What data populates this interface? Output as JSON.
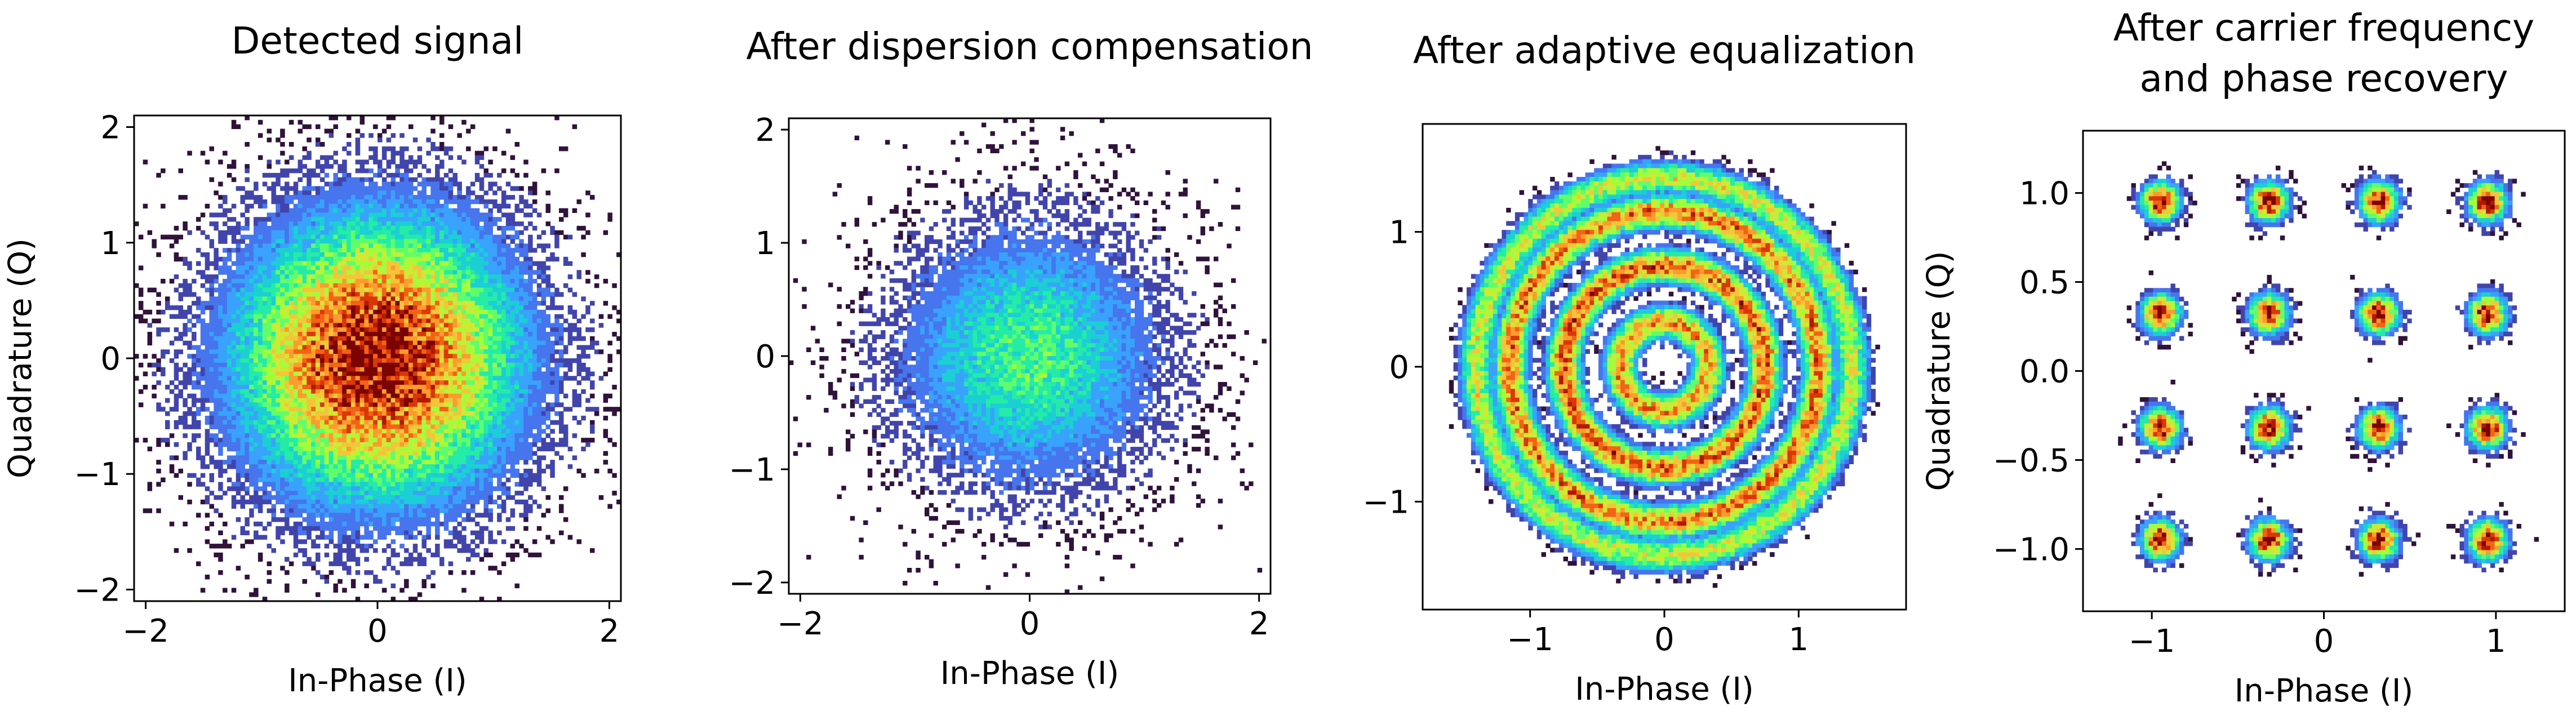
{
  "figure": {
    "background": "#ffffff",
    "colormap": [
      "#30123b",
      "#4145ab",
      "#4675ed",
      "#39a2fc",
      "#1bcfd4",
      "#24eca6",
      "#61fc6c",
      "#a4fc3b",
      "#d1e834",
      "#f3c63a",
      "#fe9b2d",
      "#f36315",
      "#d93806",
      "#b11901",
      "#7a0402"
    ]
  },
  "chart_data": [
    {
      "type": "heatmap",
      "title": "Detected signal",
      "xlabel": "In-Phase (I)",
      "ylabel": "Quadrature (Q)",
      "xlim": [
        -2.1,
        2.1
      ],
      "ylim": [
        -2.1,
        2.1
      ],
      "xticks": [
        -2,
        0,
        2
      ],
      "xtick_labels": [
        "−2",
        "0",
        "2"
      ],
      "yticks": [
        -2,
        -1,
        0,
        1,
        2
      ],
      "ytick_labels": [
        "−2",
        "−1",
        "0",
        "1",
        "2"
      ],
      "distribution": {
        "kind": "gaussian",
        "center": [
          0,
          0
        ],
        "sigma": 0.75,
        "peak_density": 1.0
      }
    },
    {
      "type": "heatmap",
      "title": "After dispersion compensation",
      "xlabel": "In-Phase (I)",
      "ylabel": "",
      "xlim": [
        -2.1,
        2.1
      ],
      "ylim": [
        -2.1,
        2.1
      ],
      "xticks": [
        -2,
        0,
        2
      ],
      "xtick_labels": [
        "−2",
        "0",
        "2"
      ],
      "yticks": [
        -2,
        -1,
        0,
        1,
        2
      ],
      "ytick_labels": [
        "−2",
        "−1",
        "0",
        "1",
        "2"
      ],
      "distribution": {
        "kind": "gaussian",
        "center": [
          0,
          0
        ],
        "sigma": 0.7,
        "peak_density": 0.4
      }
    },
    {
      "type": "heatmap",
      "title": "After adaptive equalization",
      "xlabel": "In-Phase (I)",
      "ylabel": "",
      "xlim": [
        -1.8,
        1.8
      ],
      "ylim": [
        -1.8,
        1.8
      ],
      "xticks": [
        -1,
        0,
        1
      ],
      "xtick_labels": [
        "−1",
        "0",
        "1"
      ],
      "yticks": [
        -1,
        0,
        1
      ],
      "ytick_labels": [
        "−1",
        "0",
        "1"
      ],
      "distribution": {
        "kind": "rings",
        "radii": [
          0.33,
          0.75,
          1.15,
          1.4
        ],
        "ring_width": 0.08,
        "peak_density": [
          0.7,
          0.8,
          0.75,
          0.55
        ]
      }
    },
    {
      "type": "heatmap",
      "title": "After carrier frequency and phase recovery",
      "xlabel": "In-Phase (I)",
      "ylabel": "Quadrature (Q)",
      "xlim": [
        -1.4,
        1.4
      ],
      "ylim": [
        -1.35,
        1.35
      ],
      "xticks": [
        -1,
        0,
        1
      ],
      "xtick_labels": [
        "−1",
        "0",
        "1"
      ],
      "yticks": [
        -1.0,
        -0.5,
        0.0,
        0.5,
        1.0
      ],
      "ytick_labels": [
        "−1.0",
        "−0.5",
        "0.0",
        "0.5",
        "1.0"
      ],
      "distribution": {
        "kind": "clusters",
        "centers_i": [
          -0.95,
          -0.32,
          0.32,
          0.95
        ],
        "centers_q": [
          -0.95,
          -0.32,
          0.32,
          0.95
        ],
        "sigma": 0.07,
        "peak_density": 1.0
      }
    }
  ]
}
